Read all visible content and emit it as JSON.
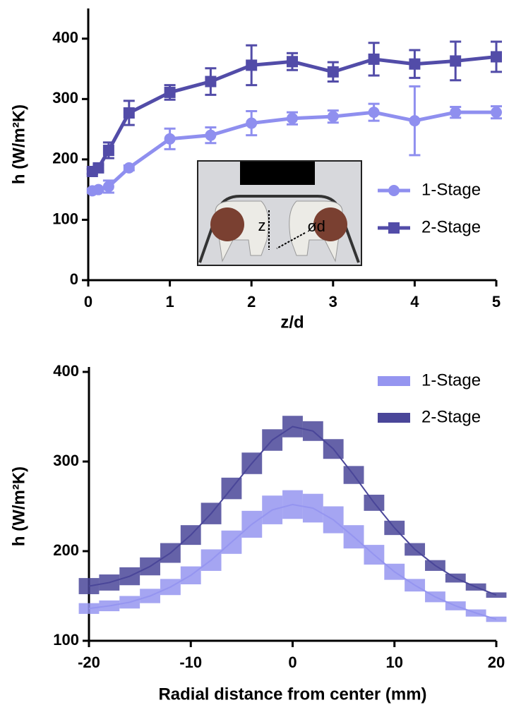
{
  "chart_data": [
    {
      "type": "line",
      "xlabel": "z/d",
      "ylabel": "h (W/m²K)",
      "x": [
        0.05,
        0.125,
        0.25,
        0.5,
        1,
        1.5,
        2,
        2.5,
        3,
        3.5,
        4,
        4.5,
        5
      ],
      "series": [
        {
          "name": "1-Stage",
          "color": "#8f8fef",
          "marker": "circle",
          "values": [
            148,
            150,
            155,
            186,
            234,
            240,
            260,
            268,
            271,
            278,
            264,
            278,
            278
          ],
          "errors": [
            3,
            3,
            10,
            4,
            17,
            13,
            20,
            10,
            10,
            14,
            57,
            9,
            10
          ]
        },
        {
          "name": "2-Stage",
          "color": "#524ca8",
          "marker": "square",
          "values": [
            180,
            186,
            215,
            277,
            311,
            329,
            356,
            362,
            345,
            366,
            358,
            363,
            370
          ],
          "errors": [
            4,
            5,
            13,
            20,
            12,
            22,
            33,
            14,
            16,
            27,
            23,
            32,
            25
          ]
        }
      ],
      "xlim": [
        0,
        5
      ],
      "xticks": [
        0,
        1,
        2,
        3,
        4,
        5
      ],
      "ylim": [
        0,
        450
      ],
      "yticks": [
        0,
        100,
        200,
        300,
        400
      ],
      "annotations": [
        "z",
        "ød"
      ],
      "legend": "right"
    },
    {
      "type": "area",
      "xlabel": "Radial distance from center (mm)",
      "ylabel": "h (W/m²K)",
      "x": [
        -20,
        -18,
        -16,
        -14,
        -12,
        -10,
        -8,
        -6,
        -4,
        -2,
        0,
        2,
        4,
        6,
        8,
        10,
        12,
        14,
        16,
        18,
        20
      ],
      "series": [
        {
          "name": "1-Stage",
          "color": "#9595f0",
          "values": [
            136,
            139,
            143,
            150,
            160,
            173,
            190,
            210,
            230,
            246,
            252,
            248,
            235,
            216,
            196,
            177,
            162,
            149,
            139,
            131,
            124
          ],
          "errors": [
            6,
            6,
            7,
            8,
            9,
            10,
            12,
            13,
            15,
            16,
            16,
            16,
            15,
            13,
            11,
            9,
            7,
            6,
            5,
            4,
            3
          ]
        },
        {
          "name": "2-Stage",
          "color": "#4a4699",
          "values": [
            161,
            165,
            172,
            183,
            198,
            218,
            242,
            270,
            298,
            324,
            339,
            334,
            314,
            285,
            254,
            226,
            202,
            184,
            170,
            160,
            151
          ],
          "errors": [
            9,
            9,
            10,
            10,
            11,
            11,
            12,
            12,
            12,
            12,
            12,
            11,
            11,
            10,
            9,
            8,
            7,
            6,
            5,
            4,
            3
          ]
        }
      ],
      "xlim": [
        -20,
        20
      ],
      "xticks": [
        -20,
        -10,
        0,
        10,
        20
      ],
      "ylim": [
        100,
        400
      ],
      "yticks": [
        100,
        200,
        300,
        400
      ],
      "legend": "top-right"
    }
  ]
}
